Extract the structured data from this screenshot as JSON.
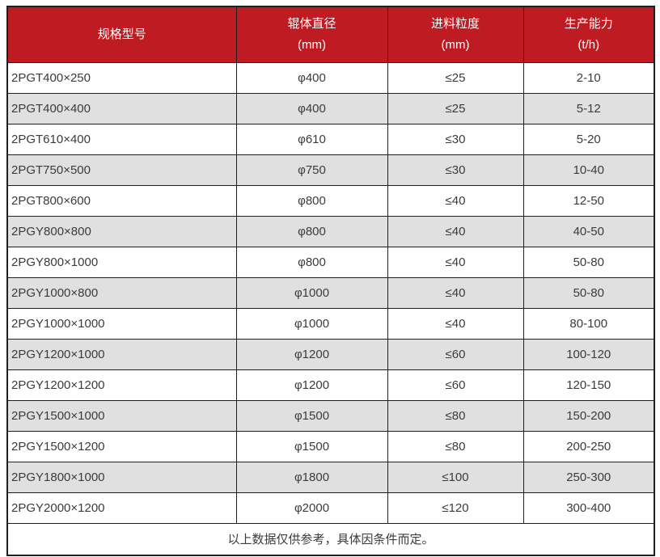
{
  "table": {
    "columns": [
      {
        "title": "规格型号",
        "unit": ""
      },
      {
        "title": "辊体直径",
        "unit": "(mm)"
      },
      {
        "title": "进料粒度",
        "unit": "(mm)"
      },
      {
        "title": "生产能力",
        "unit": "(t/h)"
      }
    ],
    "rows": [
      [
        "2PGT400×250",
        "φ400",
        "≤25",
        "2-10"
      ],
      [
        "2PGT400×400",
        "φ400",
        "≤25",
        "5-12"
      ],
      [
        "2PGT610×400",
        "φ610",
        "≤30",
        "5-20"
      ],
      [
        "2PGT750×500",
        "φ750",
        "≤30",
        "10-40"
      ],
      [
        "2PGT800×600",
        "φ800",
        "≤40",
        "12-50"
      ],
      [
        "2PGY800×800",
        "φ800",
        "≤40",
        "40-50"
      ],
      [
        "2PGY800×1000",
        "φ800",
        "≤40",
        "50-80"
      ],
      [
        "2PGY1000×800",
        "φ1000",
        "≤40",
        "50-80"
      ],
      [
        "2PGY1000×1000",
        "φ1000",
        "≤40",
        "80-100"
      ],
      [
        "2PGY1200×1000",
        "φ1200",
        "≤60",
        "100-120"
      ],
      [
        "2PGY1200×1200",
        "φ1200",
        "≤60",
        "120-150"
      ],
      [
        "2PGY1500×1000",
        "φ1500",
        "≤80",
        "150-200"
      ],
      [
        "2PGY1500×1200",
        "φ1500",
        "≤80",
        "200-250"
      ],
      [
        "2PGY1800×1000",
        "φ1800",
        "≤100",
        "250-300"
      ],
      [
        "2PGY2000×1200",
        "φ2000",
        "≤120",
        "300-400"
      ]
    ],
    "footer_note": "以上数据仅供参考，具体因条件而定。"
  },
  "colors": {
    "header_bg": "#BE1C22",
    "header_text": "#FFFFFF",
    "stripe_bg": "#E0E0E0",
    "row_bg": "#FFFFFF",
    "border": "#1F1F1F",
    "body_text": "#3B3B3B"
  }
}
